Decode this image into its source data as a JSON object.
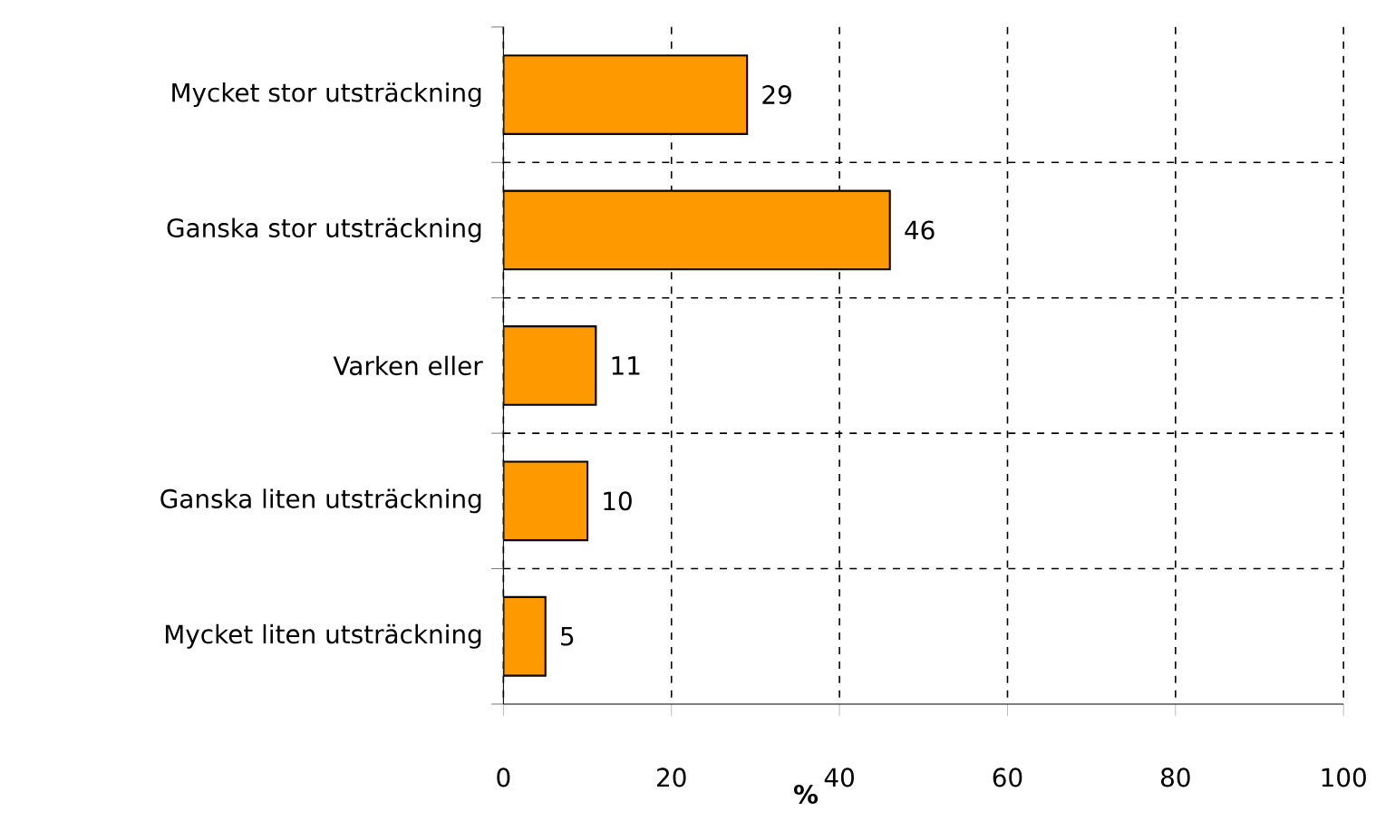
{
  "chart_data": {
    "type": "bar",
    "orientation": "horizontal",
    "categories": [
      "Mycket stor utsträckning",
      "Ganska stor utsträckning",
      "Varken eller",
      "Ganska liten utsträckning",
      "Mycket liten utsträckning"
    ],
    "values": [
      29,
      46,
      11,
      10,
      5
    ],
    "color": "#ff9900",
    "xlim": [
      0,
      100
    ],
    "xticks": [
      0,
      20,
      40,
      60,
      80,
      100
    ],
    "xlabel": "%",
    "grid": true,
    "data_labels": true
  }
}
